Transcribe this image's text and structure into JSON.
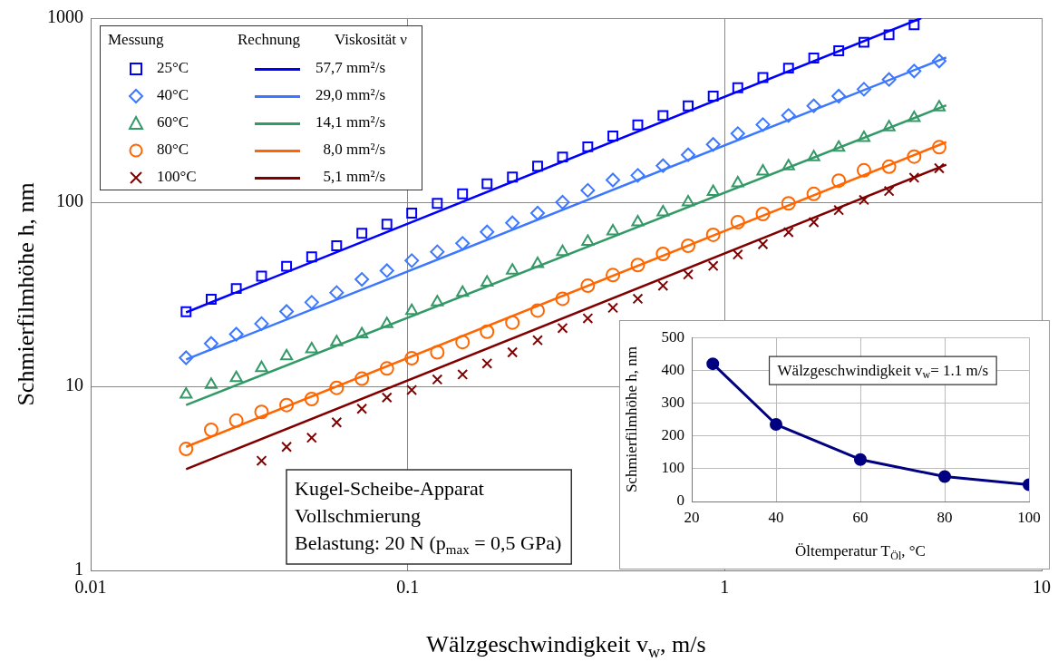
{
  "chart_data": [
    {
      "type": "scatter",
      "xlabel": "Wälzgeschwindigkeit v$_{w}$, m/s",
      "ylabel": "Schmierfilmhöhe h, nm",
      "log": "xy",
      "xlim": [
        0.01,
        10
      ],
      "ylim": [
        1,
        1000
      ],
      "xticks": [
        0.01,
        0.1,
        1,
        10
      ],
      "yticks": [
        1,
        10,
        100,
        1000
      ],
      "grid": true,
      "legend": "top left",
      "annotations": [
        "Messung",
        "Rechnung",
        "Viskosität ν",
        "Kugel-Scheibe-Apparat",
        "Vollschmierung",
        "Belastung: 20 N (p$_{max}$ = 0,5 GPa)"
      ],
      "series": [
        {
          "name": "25°C",
          "color": "#0000ff",
          "marker": "square",
          "x": [
            0.02,
            0.024,
            0.0288,
            0.0346,
            0.0415,
            0.0498,
            0.0597,
            0.0717,
            0.086,
            0.103,
            0.124,
            0.149,
            0.178,
            0.214,
            0.257,
            0.308,
            0.37,
            0.444,
            0.532,
            0.639,
            0.767,
            0.92,
            1.1,
            1.32,
            1.59,
            1.91,
            2.29,
            2.75,
            3.3,
            3.96
          ],
          "values": [
            25.4,
            29.7,
            34.0,
            39.7,
            44.9,
            50.5,
            58.0,
            67.8,
            75.9,
            87.3,
            98.6,
            111,
            126,
            137,
            157,
            176,
            200,
            229,
            263,
            296,
            334,
            377,
            419,
            476,
            535,
            607,
            665,
            739,
            812,
            920
          ]
        },
        {
          "name": "40°C",
          "color": "#3c78ff",
          "marker": "diamond",
          "x": [
            0.02,
            0.024,
            0.0288,
            0.0346,
            0.0415,
            0.0498,
            0.0597,
            0.0717,
            0.086,
            0.103,
            0.124,
            0.149,
            0.178,
            0.214,
            0.257,
            0.308,
            0.37,
            0.444,
            0.532,
            0.639,
            0.767,
            0.92,
            1.1,
            1.32,
            1.59,
            1.91,
            2.29,
            2.75,
            3.3,
            3.96,
            4.75
          ],
          "values": [
            14.3,
            17.1,
            19.2,
            21.9,
            25.5,
            28.6,
            32.3,
            38.1,
            42.5,
            48.2,
            53.8,
            59.8,
            69.0,
            77.3,
            87.3,
            100,
            116,
            132,
            140,
            158,
            181,
            206,
            236,
            264,
            296,
            334,
            377,
            411,
            464,
            516,
            585
          ]
        },
        {
          "name": "60°C",
          "color": "#339966",
          "marker": "triangle",
          "x": [
            0.02,
            0.024,
            0.0288,
            0.0346,
            0.0415,
            0.0498,
            0.0597,
            0.0717,
            0.086,
            0.103,
            0.124,
            0.149,
            0.178,
            0.214,
            0.257,
            0.308,
            0.37,
            0.444,
            0.532,
            0.639,
            0.767,
            0.92,
            1.1,
            1.32,
            1.59,
            1.91,
            2.29,
            2.75,
            3.3,
            3.96,
            4.75
          ],
          "values": [
            9.03,
            10.2,
            11.1,
            12.6,
            14.6,
            15.9,
            17.4,
            19.2,
            21.8,
            25.7,
            28.6,
            32.3,
            36.6,
            42.6,
            46.2,
            53.8,
            61.0,
            69.6,
            77.9,
            88.3,
            100,
            114,
            127,
            147,
            157,
            176,
            198,
            224,
            256,
            287,
            328
          ]
        },
        {
          "name": "80°C",
          "color": "#ff6600",
          "marker": "circle",
          "x": [
            0.02,
            0.024,
            0.0288,
            0.0346,
            0.0415,
            0.0498,
            0.0597,
            0.0717,
            0.086,
            0.103,
            0.124,
            0.149,
            0.178,
            0.214,
            0.257,
            0.308,
            0.37,
            0.444,
            0.532,
            0.639,
            0.767,
            0.92,
            1.1,
            1.32,
            1.59,
            1.91,
            2.29,
            2.75,
            3.3,
            3.96,
            4.75
          ],
          "values": [
            4.57,
            5.8,
            6.51,
            7.26,
            7.91,
            8.53,
            9.81,
            11.0,
            12.5,
            14.2,
            15.3,
            17.4,
            19.8,
            22.2,
            25.8,
            29.9,
            35.2,
            40.2,
            45.6,
            52.4,
            58.0,
            66.5,
            77.9,
            86.3,
            98.6,
            111,
            131,
            149,
            156,
            177,
            199
          ]
        },
        {
          "name": "100°C",
          "color": "#800000",
          "marker": "cross",
          "x": [
            0.0346,
            0.0415,
            0.0498,
            0.0597,
            0.0717,
            0.086,
            0.103,
            0.124,
            0.149,
            0.178,
            0.214,
            0.257,
            0.308,
            0.37,
            0.444,
            0.532,
            0.639,
            0.767,
            0.92,
            1.1,
            1.32,
            1.59,
            1.91,
            2.29,
            2.75,
            3.3,
            3.96,
            4.75
          ],
          "values": [
            3.94,
            4.69,
            5.26,
            6.37,
            7.55,
            8.69,
            9.55,
            10.9,
            11.6,
            13.3,
            15.3,
            17.8,
            20.7,
            23.4,
            26.7,
            29.9,
            35.2,
            40.5,
            45.1,
            52.0,
            59.2,
            68.7,
            77.9,
            90.6,
            103,
            115,
            136,
            153
          ]
        },
        {
          "name": "57,7 mm²/s",
          "type": "line",
          "color": "#0000ff",
          "x": [
            0.02,
            4.17
          ],
          "values": [
            25.2,
            1000
          ]
        },
        {
          "name": "29,0 mm²/s",
          "type": "line",
          "color": "#3c78ff",
          "x": [
            0.02,
            5.0
          ],
          "values": [
            14.0,
            612
          ]
        },
        {
          "name": "14,1 mm²/s",
          "type": "line",
          "color": "#339966",
          "x": [
            0.02,
            5.0
          ],
          "values": [
            7.91,
            336
          ]
        },
        {
          "name": "8,0 mm²/s",
          "type": "line",
          "color": "#ff6600",
          "x": [
            0.02,
            5.0
          ],
          "values": [
            4.69,
            212
          ]
        },
        {
          "name": "5,1 mm²/s",
          "type": "line",
          "color": "#800000",
          "x": [
            0.02,
            5.0
          ],
          "values": [
            3.55,
            160
          ]
        }
      ]
    },
    {
      "type": "line",
      "xlabel": "Öltemperatur T$_{Öl}$, °C",
      "ylabel": "Schmierfilmhöhe h, nm",
      "xlim": [
        20,
        100
      ],
      "ylim": [
        0,
        500
      ],
      "xticks": [
        20,
        40,
        60,
        80,
        100
      ],
      "yticks": [
        0,
        100,
        200,
        300,
        400,
        500
      ],
      "grid": true,
      "marker": "circle",
      "annotations": [
        "Wälzgeschwindigkeit v$_{w}$= 1.1 m/s"
      ],
      "x": [
        25,
        40,
        60,
        80,
        100
      ],
      "values": [
        420,
        235,
        128,
        76,
        51
      ],
      "color": "#000080"
    }
  ]
}
